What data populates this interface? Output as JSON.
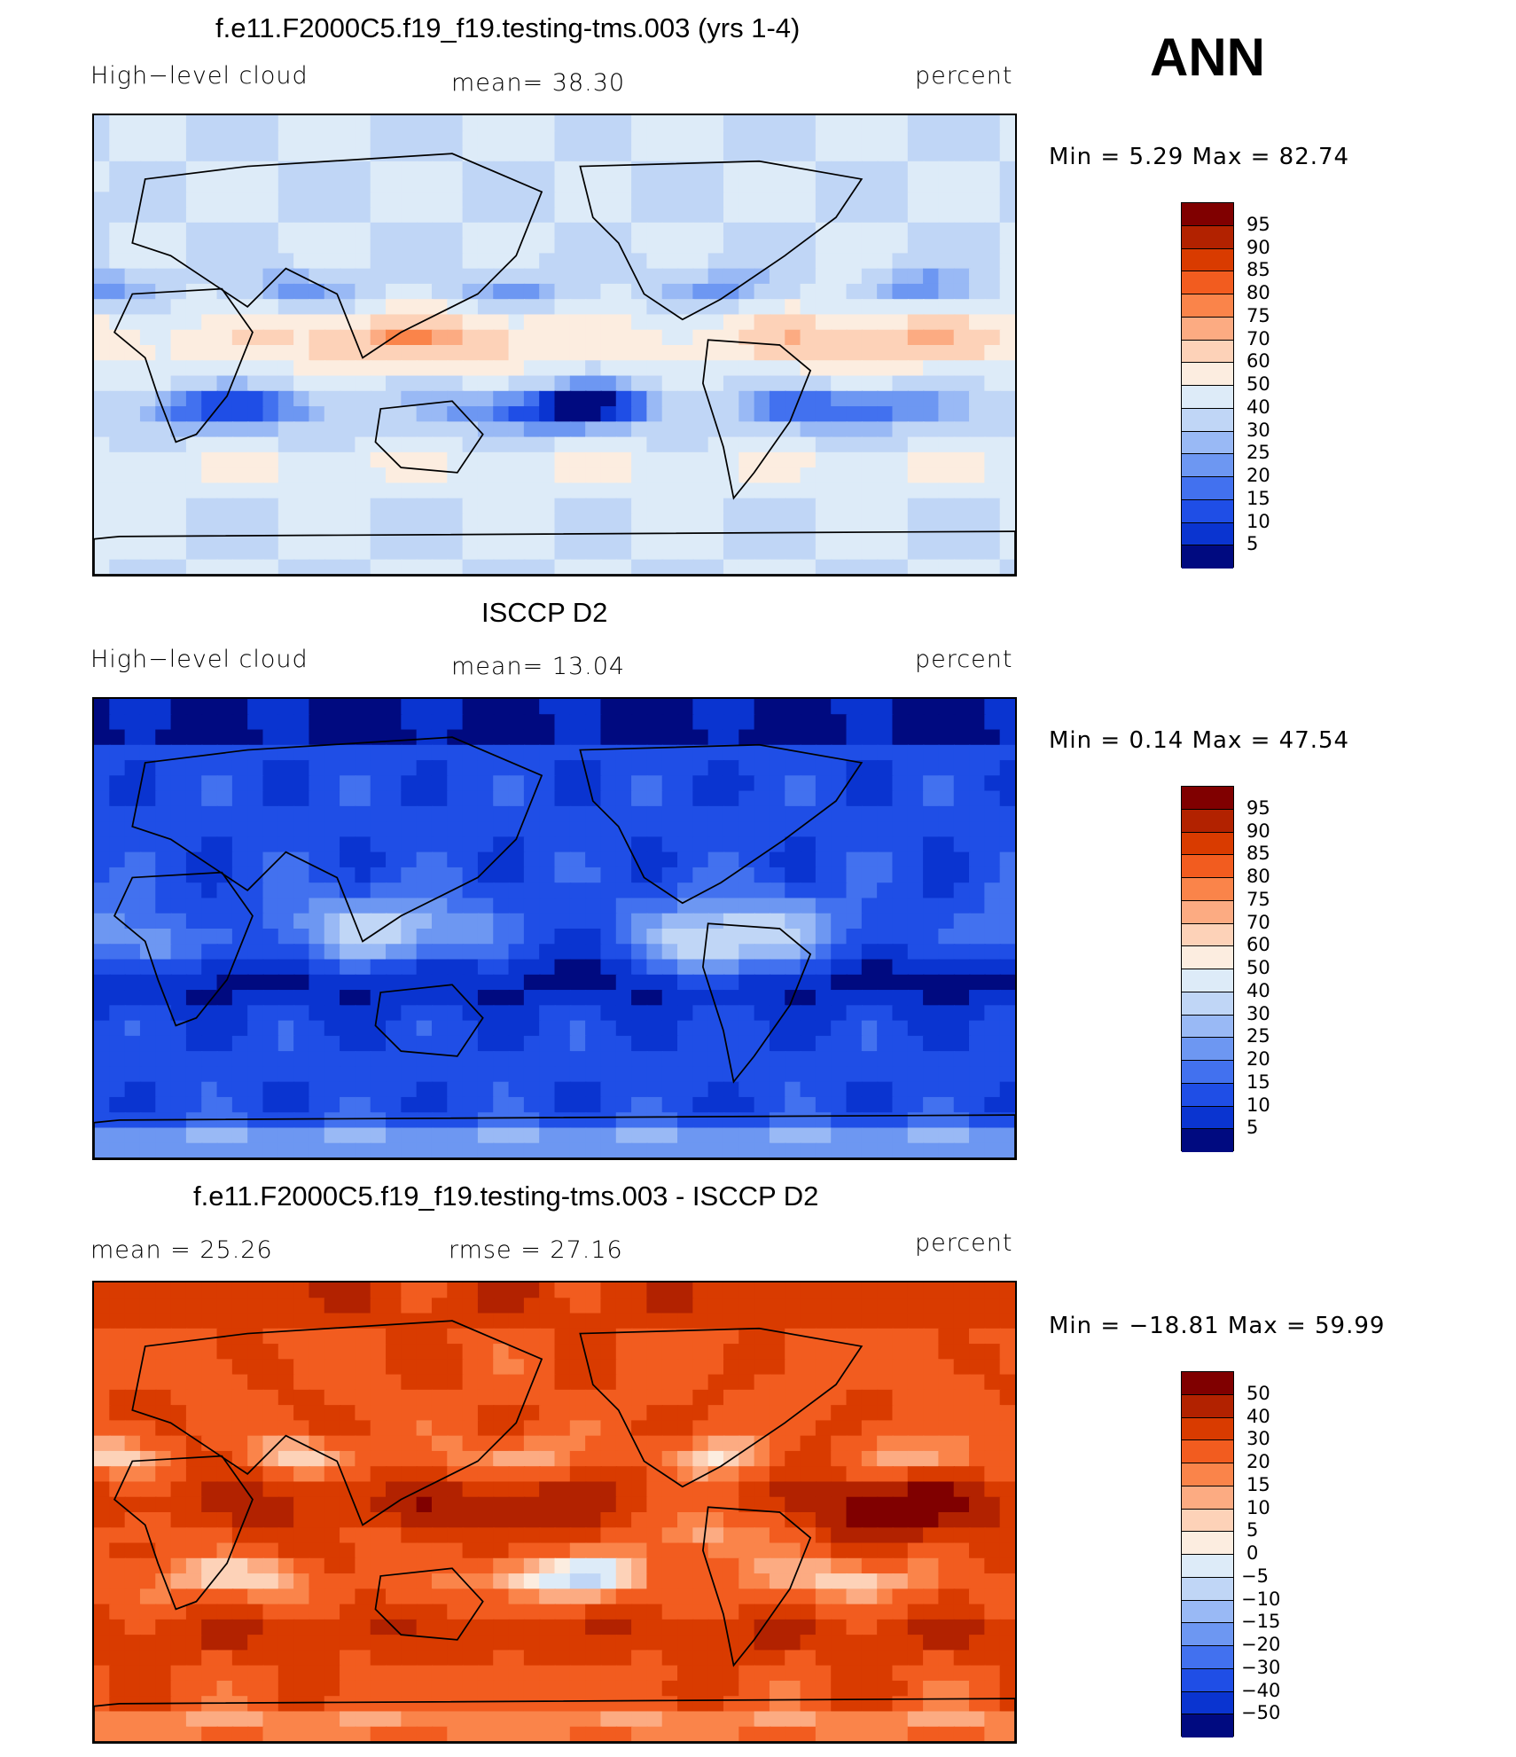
{
  "season": "ANN",
  "colors": {
    "pos": [
      "#800000",
      "#b22200",
      "#d93b00",
      "#f25c1f",
      "#fa844a",
      "#fcab82",
      "#fdd2b8",
      "#fcede0",
      "#ddebf8",
      "#c0d6f6",
      "#99b9f5",
      "#6d97f2",
      "#4271ef",
      "#1f4ee6",
      "#0a34d0",
      "#0a22a8",
      "#000a80"
    ],
    "land": "#000000"
  },
  "panels": [
    {
      "title": "f.e11.F2000C5.f19_f19.testing-tms.003 (yrs 1-4)",
      "left_label": "High−level cloud",
      "center_label": "mean=   38.30",
      "right_label": "percent",
      "minmax": "Min  =     5.29  Max  =    82.74",
      "colorbar": [
        "95",
        "90",
        "85",
        "80",
        "75",
        "70",
        "60",
        "50",
        "40",
        "30",
        "25",
        "20",
        "15",
        "10",
        "5"
      ],
      "field": "model"
    },
    {
      "title": "ISCCP D2",
      "left_label": "High−level cloud",
      "center_label": "mean=   13.04",
      "right_label": "percent",
      "minmax": "Min  =     0.14  Max  =    47.54",
      "colorbar": [
        "95",
        "90",
        "85",
        "80",
        "75",
        "70",
        "60",
        "50",
        "40",
        "30",
        "25",
        "20",
        "15",
        "10",
        "5"
      ],
      "field": "obs"
    },
    {
      "title": "f.e11.F2000C5.f19_f19.testing-tms.003 - ISCCP D2",
      "left_label": "mean  =    25.26",
      "center_label": "rmse  =    27.16",
      "right_label": "percent",
      "minmax": "Min  = −18.81  Max  =    59.99",
      "colorbar": [
        "50",
        "40",
        "30",
        "20",
        "15",
        "10",
        "5",
        "0",
        "−5",
        "−10",
        "−15",
        "−20",
        "−30",
        "−40",
        "−50"
      ],
      "field": "diff"
    }
  ]
}
